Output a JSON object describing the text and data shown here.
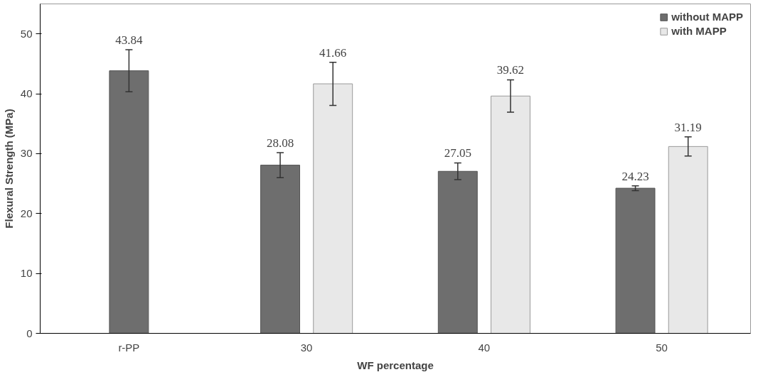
{
  "chart_data": {
    "type": "bar",
    "ylabel": "Flexural Strength (MPa)",
    "xlabel": "WF percentage",
    "categories": [
      "r-PP",
      "30",
      "40",
      "50"
    ],
    "series": [
      {
        "name": "without MAPP",
        "color": "#6e6e6e",
        "values": [
          43.84,
          28.08,
          27.05,
          24.23
        ],
        "errors": [
          3.5,
          2.1,
          1.4,
          0.4
        ]
      },
      {
        "name": "with MAPP",
        "color": "#e8e8e8",
        "values": [
          null,
          41.66,
          39.62,
          31.19
        ],
        "errors": [
          null,
          3.6,
          2.7,
          1.6
        ]
      }
    ],
    "ylim": [
      0,
      55
    ],
    "yticks": [
      0,
      10,
      20,
      30,
      40,
      50
    ],
    "grid": false,
    "legend": "top right",
    "data_labels": true
  }
}
